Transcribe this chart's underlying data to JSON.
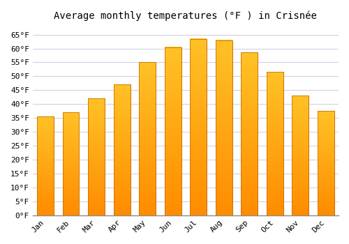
{
  "title": "Average monthly temperatures (°F ) in Crisnée",
  "months": [
    "Jan",
    "Feb",
    "Mar",
    "Apr",
    "May",
    "Jun",
    "Jul",
    "Aug",
    "Sep",
    "Oct",
    "Nov",
    "Dec"
  ],
  "values": [
    35.5,
    37,
    42,
    47,
    55,
    60.5,
    63.5,
    63,
    58.5,
    51.5,
    43,
    37.5
  ],
  "bar_color_top": "#FFC125",
  "bar_color_bottom": "#FF8C00",
  "bar_edge_color": "#CC7000",
  "background_color": "#FFFFFF",
  "plot_bg_color": "#FFFFFF",
  "grid_color": "#CCCCDD",
  "ylim": [
    0,
    68
  ],
  "yticks": [
    0,
    5,
    10,
    15,
    20,
    25,
    30,
    35,
    40,
    45,
    50,
    55,
    60,
    65
  ],
  "title_fontsize": 10,
  "tick_fontsize": 8
}
